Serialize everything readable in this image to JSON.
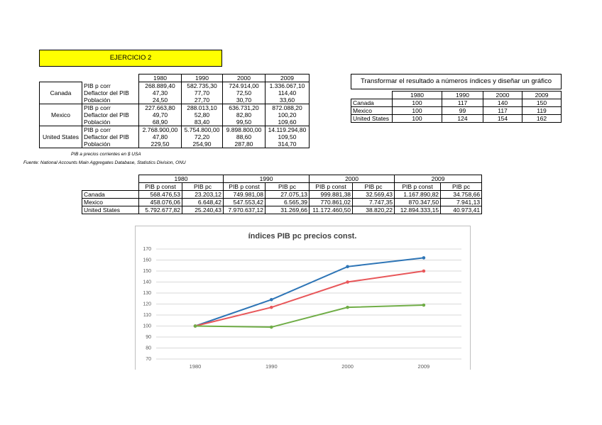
{
  "header": {
    "title": "EJERCICIO 2"
  },
  "table1": {
    "columns": [
      "1980",
      "1990",
      "2000",
      "2009"
    ],
    "groups": [
      {
        "country": "Canada",
        "rows": [
          {
            "label": "PIB p corr",
            "values": [
              "268.889,40",
              "582.735,30",
              "724.914,00",
              "1.336.067,10"
            ]
          },
          {
            "label": "Deflactor del PIB",
            "values": [
              "47,30",
              "77,70",
              "72,50",
              "114,40"
            ]
          },
          {
            "label": "Población",
            "values": [
              "24,50",
              "27,70",
              "30,70",
              "33,60"
            ]
          }
        ]
      },
      {
        "country": "Mexico",
        "rows": [
          {
            "label": "PIB p corr",
            "values": [
              "227.663,80",
              "288.013,10",
              "636.731,20",
              "872.088,20"
            ]
          },
          {
            "label": "Deflactor del PIB",
            "values": [
              "49,70",
              "52,80",
              "82,80",
              "100,20"
            ]
          },
          {
            "label": "Población",
            "values": [
              "68,90",
              "83,40",
              "99,50",
              "109,60"
            ]
          }
        ]
      },
      {
        "country": "United States",
        "rows": [
          {
            "label": "PIB p corr",
            "values": [
              "2.768.900,00",
              "5.754.800,00",
              "9.898.800,00",
              "14.119.294,80"
            ]
          },
          {
            "label": "Deflactor del PIB",
            "values": [
              "47,80",
              "72,20",
              "88,60",
              "109,50"
            ]
          },
          {
            "label": "Población",
            "values": [
              "229,50",
              "254,90",
              "287,80",
              "314,70"
            ]
          }
        ]
      }
    ],
    "notes": [
      "PIB a precios corrientes en $ USA",
      "Fuente: National Accounts Main Aggregates Database, Statistics Division, ONU"
    ]
  },
  "table2": {
    "title": "Transformar el resultado a números índices y diseñar un gráfico",
    "columns": [
      "1980",
      "1990",
      "2000",
      "2009"
    ],
    "rows": [
      {
        "label": "Canada",
        "values": [
          100,
          117,
          140,
          150
        ]
      },
      {
        "label": "Mexico",
        "values": [
          100,
          99,
          117,
          119
        ]
      },
      {
        "label": "United States",
        "values": [
          100,
          124,
          154,
          162
        ]
      }
    ]
  },
  "table3": {
    "years": [
      "1980",
      "1990",
      "2000",
      "2009"
    ],
    "subcolumns": [
      "PIB p const",
      "PIB pc"
    ],
    "rows": [
      {
        "label": "Canada",
        "values": [
          "568.476,53",
          "23.203,12",
          "749.981,08",
          "27.075,13",
          "999.881,38",
          "32.569,43",
          "1.167.890,82",
          "34.758,66"
        ]
      },
      {
        "label": "Mexico",
        "values": [
          "458.076,06",
          "6.648,42",
          "547.553,42",
          "6.565,39",
          "770.861,02",
          "7.747,35",
          "870.347,50",
          "7.941,13"
        ]
      },
      {
        "label": "United States",
        "values": [
          "5.792.677,82",
          "25.240,43",
          "7.970.637,12",
          "31.269,66",
          "11.172.460,50",
          "38.820,22",
          "12.894.333,15",
          "40.973,41"
        ]
      }
    ]
  },
  "chart": {
    "type": "line",
    "title": "índices PIB pc precios const.",
    "categories": [
      "1980",
      "1990",
      "2000",
      "2009"
    ],
    "ylim": [
      70,
      170
    ],
    "yticks": [
      70,
      80,
      90,
      100,
      110,
      120,
      130,
      140,
      150,
      160,
      170
    ],
    "grid": true,
    "series": [
      {
        "color": "#2e75b6",
        "values": [
          100,
          124,
          154,
          162
        ]
      },
      {
        "color": "#e8575a",
        "values": [
          100,
          117,
          140,
          150
        ]
      },
      {
        "color": "#70ad47",
        "values": [
          100,
          99,
          117,
          119
        ]
      }
    ]
  }
}
